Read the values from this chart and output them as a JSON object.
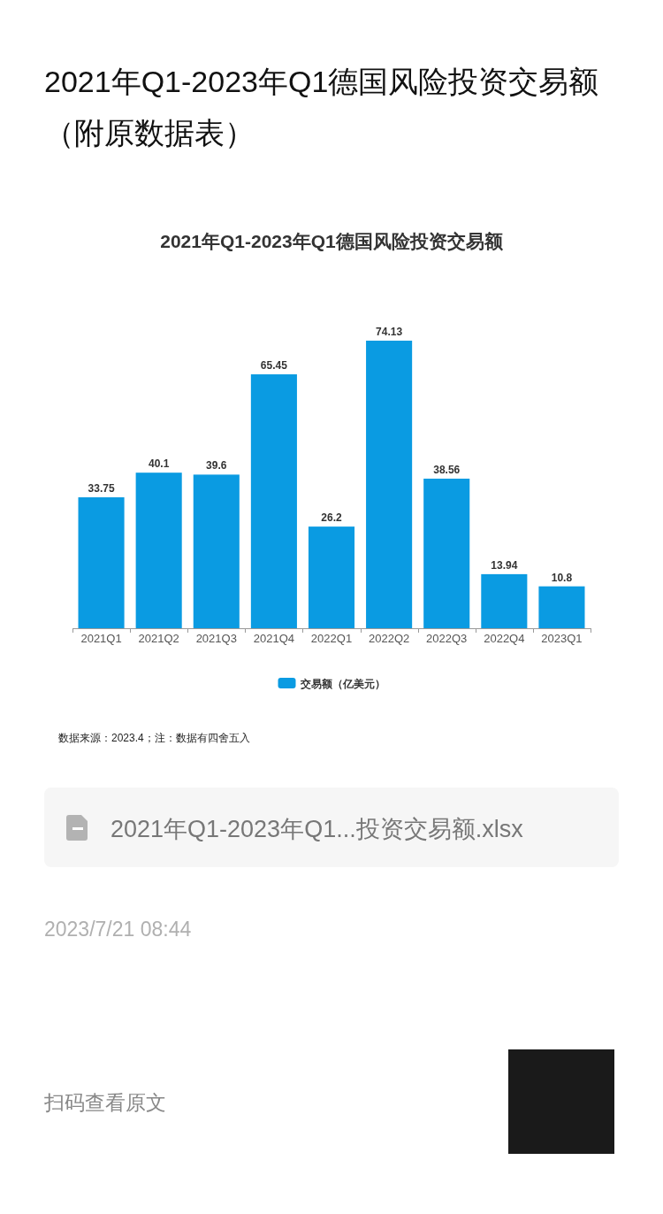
{
  "chart_data": {
    "type": "bar",
    "title": "2021年Q1-2023年Q1德国风险投资交易额",
    "categories": [
      "2021Q1",
      "2021Q2",
      "2021Q3",
      "2021Q4",
      "2022Q1",
      "2022Q2",
      "2022Q3",
      "2022Q4",
      "2023Q1"
    ],
    "series": [
      {
        "name": "交易额（亿美元）",
        "color": "#0a9be2",
        "values": [
          33.75,
          40.1,
          39.6,
          65.45,
          26.2,
          74.13,
          38.56,
          13.94,
          10.8
        ]
      }
    ],
    "data_labels": true,
    "legend": "bottom",
    "annotations": [
      "2021年Q1-2023年Q1德国风险投资交易额（附原数据表）",
      "数据来源：2023.4；注：数据有四舍五入",
      "2021年Q1-2023年Q1...投资交易额.xlsx",
      "2023/7/21 08:44",
      "扫码查看原文"
    ]
  }
}
